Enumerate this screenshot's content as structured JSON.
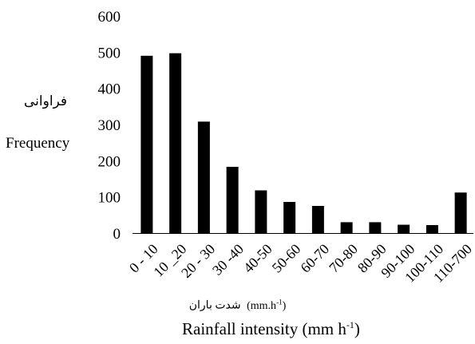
{
  "chart_data": {
    "type": "bar",
    "categories": [
      "0 - 10",
      "10 _20",
      "20 - 30",
      "30 -40",
      "40-50",
      "50-60",
      "60-70",
      "70-80",
      "80-90",
      "90-100",
      "100-110",
      "110-700"
    ],
    "values": [
      490,
      497,
      308,
      183,
      118,
      86,
      75,
      30,
      30,
      23,
      22,
      112
    ],
    "ylim": [
      0,
      600
    ],
    "yticks": [
      "0",
      "100",
      "200",
      "300",
      "400",
      "500",
      "600"
    ],
    "ylabel_fa": "فراوانی",
    "ylabel_en": "Frequency",
    "xlabel_unit_fa": "شدت باران",
    "xlabel_unit_en": "(mm.h",
    "xlabel_unit_sup": "-1",
    "xlabel_unit_close": ")",
    "xlabel_en": "Rainfall intensity (mm h",
    "xlabel_sup": "-1",
    "xlabel_close": ")",
    "bar_color": "#000000",
    "grid": false
  }
}
